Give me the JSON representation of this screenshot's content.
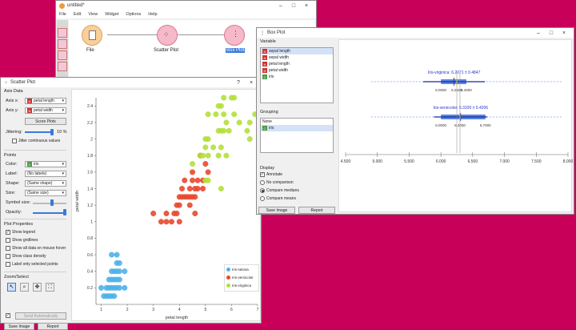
{
  "canvas_window": {
    "title": "untitled*",
    "menu": [
      "File",
      "Edit",
      "View",
      "Widget",
      "Options",
      "Help"
    ],
    "widgets": [
      "File",
      "Scatter Plot",
      "Box Plot"
    ]
  },
  "scatter_window": {
    "title": "Scatter Plot",
    "axis_data_title": "Axis Data",
    "axis_x_label": "Axis x:",
    "axis_x_value": "petal length",
    "axis_y_label": "Axis y:",
    "axis_y_value": "petal width",
    "score_plots": "Score Plots",
    "jittering_label": "Jittering:",
    "jittering_value": "10 %",
    "jitter_continuous": "Jitter continuous values",
    "points_title": "Points",
    "color_label": "Color:",
    "color_value": "iris",
    "label_label": "Label:",
    "label_value": "(No labels)",
    "shape_label": "Shape:",
    "shape_value": "(Same shape)",
    "size_label": "Size:",
    "size_value": "(Same size)",
    "symbol_size_label": "Symbol size:",
    "opacity_label": "Opacity:",
    "plot_properties_title": "Plot Properties",
    "show_legend": "Show legend",
    "show_gridlines": "Show gridlines",
    "show_all_data": "Show all data on mouse hover",
    "show_class_density": "Show class density",
    "label_only_selected": "Label only selected points",
    "zoom_select_title": "Zoom/Select",
    "send_automatically": "Send Automatically",
    "save_image": "Save Image",
    "report": "Report"
  },
  "boxplot_window": {
    "title": "Box Plot",
    "variable_title": "Variable",
    "variables": [
      {
        "name": "sepal length",
        "type": "N"
      },
      {
        "name": "sepal width",
        "type": "N"
      },
      {
        "name": "petal length",
        "type": "N"
      },
      {
        "name": "petal width",
        "type": "N"
      },
      {
        "name": "iris",
        "type": "C"
      }
    ],
    "grouping_title": "Grouping",
    "groupings": [
      {
        "name": "None",
        "type": ""
      },
      {
        "name": "iris",
        "type": "C"
      }
    ],
    "display_title": "Display",
    "annotate": "Annotate",
    "no_comparison": "No comparison",
    "compare_medians": "Compare medians",
    "compare_means": "Compare means",
    "save_image": "Save Image",
    "report": "Report"
  },
  "chart_data": [
    {
      "type": "scatter",
      "xlabel": "petal length",
      "ylabel": "petal width",
      "xlim": [
        0.8,
        7
      ],
      "ylim": [
        0,
        2.5
      ],
      "x_ticks": [
        "1",
        "2",
        "3",
        "4",
        "5",
        "6",
        "7"
      ],
      "y_ticks": [
        "0.2",
        "0.4",
        "0.6",
        "0.8",
        "1",
        "1.2",
        "1.4",
        "1.6",
        "1.8",
        "2",
        "2.2",
        "2.4"
      ],
      "legend": "bottom-right",
      "series": [
        {
          "name": "Iris-setosa",
          "color": "#4fb3e8",
          "points": [
            [
              1.1,
              0.1
            ],
            [
              1.2,
              0.1
            ],
            [
              1.3,
              0.1
            ],
            [
              1.4,
              0.1
            ],
            [
              1.5,
              0.1
            ],
            [
              1.0,
              0.2
            ],
            [
              1.2,
              0.2
            ],
            [
              1.3,
              0.2
            ],
            [
              1.4,
              0.2
            ],
            [
              1.5,
              0.2
            ],
            [
              1.6,
              0.2
            ],
            [
              1.7,
              0.2
            ],
            [
              1.9,
              0.2
            ],
            [
              1.3,
              0.3
            ],
            [
              1.4,
              0.3
            ],
            [
              1.5,
              0.3
            ],
            [
              1.6,
              0.3
            ],
            [
              1.7,
              0.3
            ],
            [
              1.4,
              0.4
            ],
            [
              1.5,
              0.4
            ],
            [
              1.6,
              0.4
            ],
            [
              1.7,
              0.4
            ],
            [
              1.9,
              0.4
            ],
            [
              1.6,
              0.5
            ],
            [
              1.7,
              0.5
            ],
            [
              1.4,
              0.6
            ],
            [
              1.6,
              0.6
            ]
          ]
        },
        {
          "name": "Iris-versicolor",
          "color": "#e8492e",
          "points": [
            [
              3.0,
              1.1
            ],
            [
              3.3,
              1.0
            ],
            [
              3.5,
              1.0
            ],
            [
              3.7,
              1.0
            ],
            [
              4.0,
              1.0
            ],
            [
              3.5,
              1.1
            ],
            [
              3.8,
              1.1
            ],
            [
              3.9,
              1.1
            ],
            [
              3.9,
              1.2
            ],
            [
              4.0,
              1.2
            ],
            [
              4.4,
              1.2
            ],
            [
              4.6,
              1.1
            ],
            [
              4.0,
              1.3
            ],
            [
              4.1,
              1.3
            ],
            [
              4.2,
              1.3
            ],
            [
              4.3,
              1.3
            ],
            [
              4.4,
              1.3
            ],
            [
              4.5,
              1.3
            ],
            [
              4.6,
              1.3
            ],
            [
              4.1,
              1.4
            ],
            [
              4.4,
              1.4
            ],
            [
              4.6,
              1.4
            ],
            [
              4.7,
              1.4
            ],
            [
              4.9,
              1.4
            ],
            [
              4.2,
              1.5
            ],
            [
              4.5,
              1.5
            ],
            [
              4.7,
              1.5
            ],
            [
              4.9,
              1.5
            ],
            [
              5.0,
              1.7
            ],
            [
              4.8,
              1.8
            ],
            [
              4.5,
              1.6
            ],
            [
              5.1,
              1.6
            ],
            [
              4.8,
              1.8
            ]
          ]
        },
        {
          "name": "Iris-virginica",
          "color": "#b2e03a",
          "points": [
            [
              4.5,
              1.7
            ],
            [
              5.0,
              1.5
            ],
            [
              5.1,
              1.5
            ],
            [
              5.6,
              1.4
            ],
            [
              4.9,
              1.8
            ],
            [
              5.1,
              1.8
            ],
            [
              5.5,
              1.8
            ],
            [
              5.8,
              1.8
            ],
            [
              4.8,
              1.8
            ],
            [
              5.0,
              1.9
            ],
            [
              5.3,
              1.9
            ],
            [
              5.6,
              1.9
            ],
            [
              5.0,
              2.0
            ],
            [
              5.1,
              2.0
            ],
            [
              5.5,
              2.1
            ],
            [
              5.6,
              2.1
            ],
            [
              5.7,
              2.1
            ],
            [
              5.9,
              2.1
            ],
            [
              5.8,
              2.2
            ],
            [
              6.1,
              2.3
            ],
            [
              5.7,
              2.3
            ],
            [
              5.1,
              2.3
            ],
            [
              6.0,
              2.5
            ],
            [
              6.1,
              2.5
            ],
            [
              5.7,
              2.5
            ],
            [
              5.5,
              2.4
            ],
            [
              6.7,
              2.0
            ],
            [
              6.9,
              2.3
            ],
            [
              6.7,
              2.2
            ],
            [
              6.3,
              2.2
            ],
            [
              5.6,
              2.4
            ],
            [
              5.4,
              2.3
            ],
            [
              6.6,
              2.1
            ]
          ]
        }
      ]
    },
    {
      "type": "box",
      "xlim": [
        4.5,
        8.0
      ],
      "x_ticks": [
        "4.500",
        "5.000",
        "5.500",
        "6.000",
        "6.500",
        "7.000",
        "7.500",
        "8.000"
      ],
      "groups": [
        {
          "name": "Iris-virginica",
          "mean": 6.2071,
          "sd": 0.4847,
          "min": 4.9,
          "q1": 6.0,
          "median": 6.25,
          "q3": 6.4,
          "max": 7.9,
          "label_top": "Iris-virginica: 6.2071 ± 0.4847",
          "q_labels": [
            "6.0000",
            "6.2500",
            "6.4000"
          ],
          "color": "#3f6fe0"
        },
        {
          "name": "Iris-versicolor",
          "mean": 6.31,
          "sd": 0.4206,
          "min": 4.9,
          "q1": 6.0,
          "median": 6.3,
          "q3": 6.7,
          "max": 7.9,
          "label_top": "Iris-versicolor: 6.3100 ± 0.4206",
          "q_labels": [
            "6.0000",
            "6.3000",
            "6.7000"
          ],
          "color": "#3f6fe0"
        }
      ]
    }
  ]
}
